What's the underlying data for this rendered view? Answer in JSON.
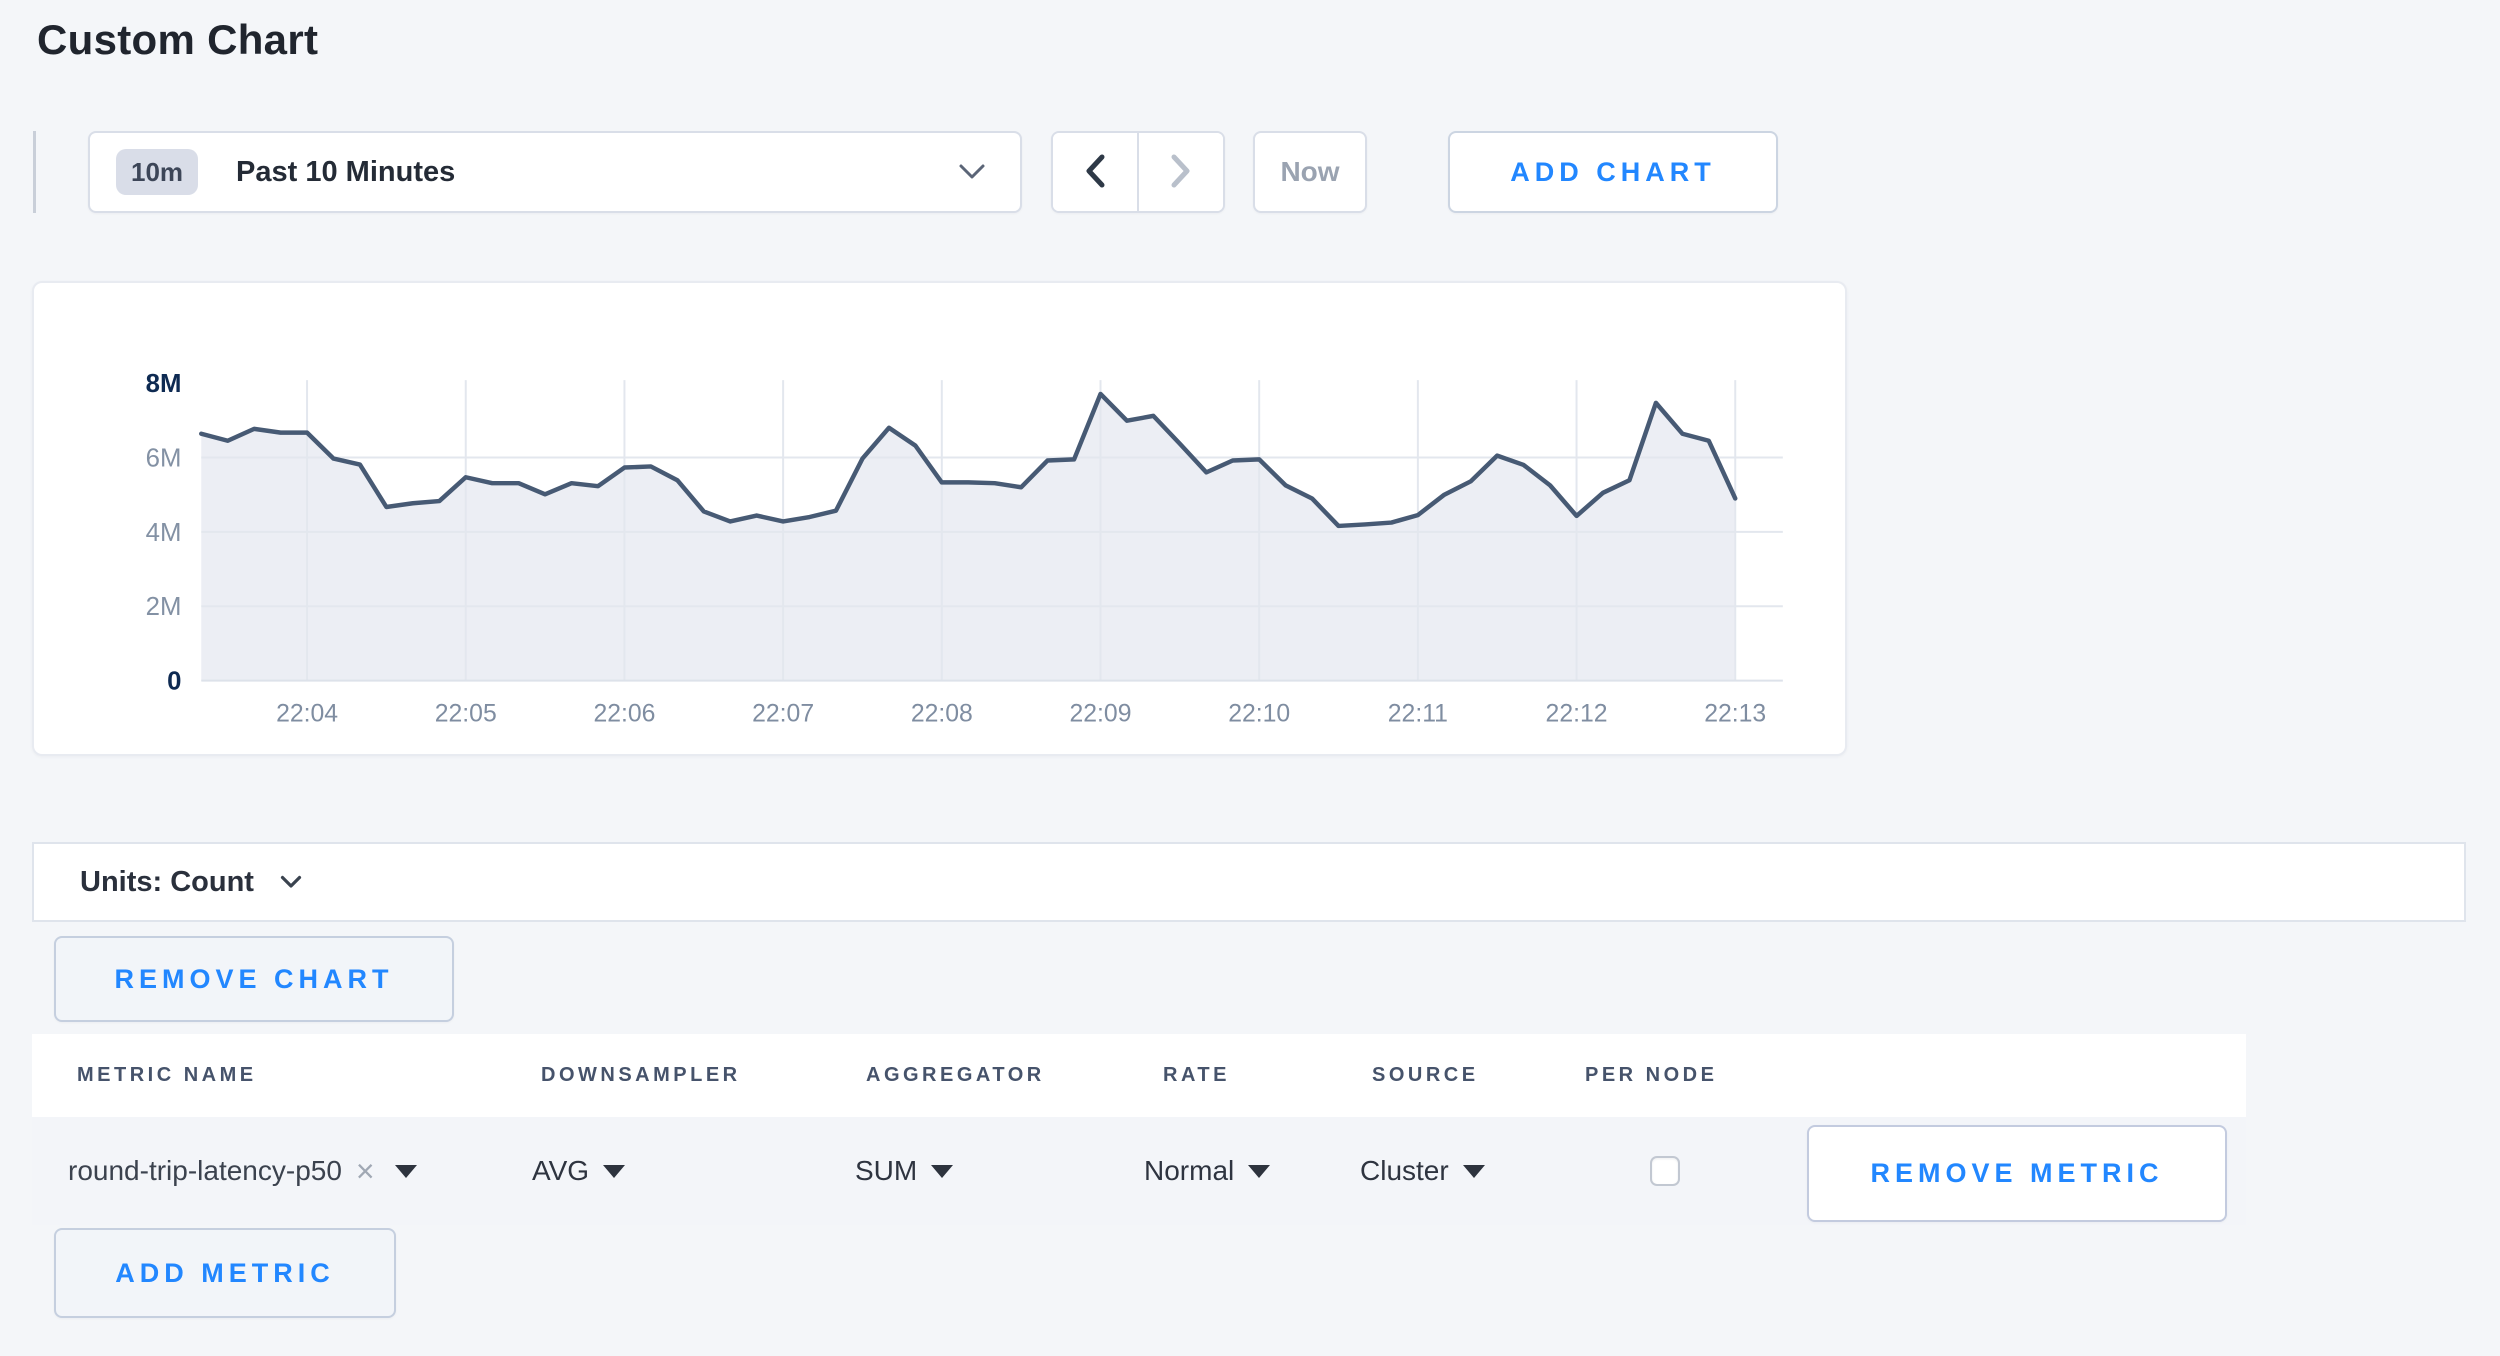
{
  "page": {
    "title": "Custom Chart"
  },
  "colors": {
    "accent_blue": "#2287ff",
    "page_background": "#f4f6f9",
    "line": "#475a74",
    "fill": "#eceef4",
    "grid": "#e3e7ee"
  },
  "toolbar": {
    "range_badge": "10m",
    "range_label": "Past 10 Minutes",
    "now_label": "Now",
    "add_chart_label": "ADD CHART"
  },
  "units_bar": {
    "label": "Units: Count"
  },
  "remove_chart_label": "REMOVE CHART",
  "add_metric_label": "ADD METRIC",
  "icons": {
    "close": "×"
  },
  "metrics_table": {
    "headers": [
      "METRIC NAME",
      "DOWNSAMPLER",
      "AGGREGATOR",
      "RATE",
      "SOURCE",
      "PER NODE"
    ],
    "rows": [
      {
        "metric_name": "round-trip-latency-p50",
        "downsampler": "AVG",
        "aggregator": "SUM",
        "rate": "Normal",
        "source": "Cluster",
        "per_node_checked": false,
        "remove_label": "REMOVE METRIC"
      }
    ]
  },
  "chart_data": {
    "type": "area",
    "title": "",
    "series": [
      {
        "name": "round-trip-latency-p50",
        "values_millions": [
          6.64,
          6.45,
          6.77,
          6.67,
          6.67,
          5.97,
          5.81,
          4.67,
          4.77,
          4.83,
          5.47,
          5.31,
          5.31,
          5.01,
          5.31,
          5.23,
          5.73,
          5.76,
          5.39,
          4.55,
          4.28,
          4.44,
          4.28,
          4.4,
          4.57,
          5.97,
          6.8,
          6.32,
          5.33,
          5.33,
          5.31,
          5.2,
          5.92,
          5.95,
          7.71,
          6.99,
          7.12,
          6.37,
          5.6,
          5.92,
          5.95,
          5.25,
          4.9,
          4.16,
          4.2,
          4.25,
          4.45,
          5.0,
          5.36,
          6.05,
          5.8,
          5.25,
          4.43,
          5.05,
          5.39,
          7.47,
          6.64,
          6.45,
          4.9
        ]
      }
    ],
    "x_start": "22:03:20",
    "x_end": "22:13:00",
    "x_interval_seconds": 10,
    "x_tick_labels": [
      "22:04",
      "22:05",
      "22:06",
      "22:07",
      "22:08",
      "22:09",
      "22:10",
      "22:11",
      "22:12",
      "22:13"
    ],
    "y_tick_labels": [
      "8M",
      "6M",
      "4M",
      "2M",
      "0"
    ],
    "y_tick_values_millions": [
      8,
      6,
      4,
      2,
      0
    ],
    "ylim_millions": [
      0,
      8
    ],
    "grid": true,
    "legend": "none",
    "line_color": "#475a74",
    "fill_color": "#eceef4",
    "grid_color": "#e3e7ee"
  }
}
